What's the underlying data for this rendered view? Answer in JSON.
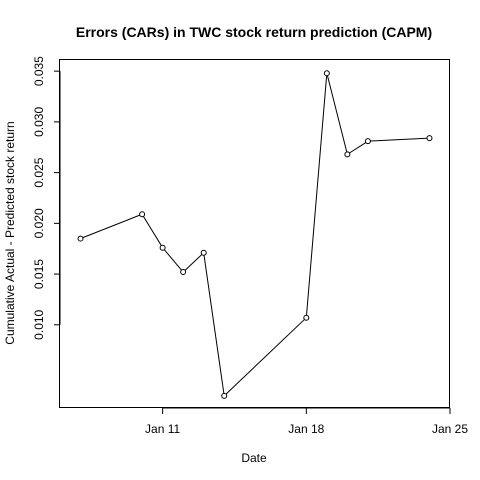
{
  "chart_data": {
    "type": "line",
    "title": "Errors (CARs) in TWC stock return prediction (CAPM)",
    "xlabel": "Date",
    "ylabel": "Cumulative Actual - Predicted stock return",
    "x": [
      "2000-01-07",
      "2000-01-10",
      "2000-01-11",
      "2000-01-12",
      "2000-01-13",
      "2000-01-14",
      "2000-01-18",
      "2000-01-19",
      "2000-01-20",
      "2000-01-21",
      "2000-01-24"
    ],
    "values": [
      0.0185,
      0.0209,
      0.0176,
      0.0152,
      0.0171,
      0.003,
      0.0107,
      0.0348,
      0.0268,
      0.0281,
      0.0284
    ],
    "xticks": [
      {
        "date": "2000-01-11",
        "label": "Jan 11"
      },
      {
        "date": "2000-01-18",
        "label": "Jan 18"
      },
      {
        "date": "2000-01-25",
        "label": "Jan 25"
      }
    ],
    "yticks": [
      {
        "value": 0.01,
        "label": "0.010"
      },
      {
        "value": 0.015,
        "label": "0.015"
      },
      {
        "value": 0.02,
        "label": "0.020"
      },
      {
        "value": 0.025,
        "label": "0.025"
      },
      {
        "value": 0.03,
        "label": "0.030"
      },
      {
        "value": 0.035,
        "label": "0.035"
      }
    ],
    "xlim": [
      "2000-01-06",
      "2000-01-25"
    ],
    "ylim": [
      0.0018,
      0.0361
    ],
    "grid": false,
    "series_color": "#000000",
    "marker": "open-circle"
  }
}
